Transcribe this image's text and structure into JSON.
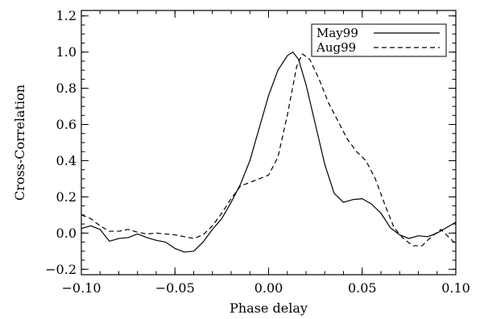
{
  "chart_data": {
    "type": "line",
    "title": "",
    "xlabel": "Phase delay",
    "ylabel": "Cross-Correlation",
    "xlim": [
      -0.1,
      0.1
    ],
    "ylim": [
      -0.23,
      1.23
    ],
    "x_ticks": [
      -0.1,
      -0.05,
      0.0,
      0.05,
      0.1
    ],
    "x_tick_labels": [
      "−0.10",
      "−0.05",
      "0.00",
      "0.05",
      "0.10"
    ],
    "y_ticks": [
      -0.2,
      0.0,
      0.2,
      0.4,
      0.6,
      0.8,
      1.0,
      1.2
    ],
    "y_tick_labels": [
      "−0.2",
      "0.0",
      "0.2",
      "0.4",
      "0.6",
      "0.8",
      "1.0",
      "1.2"
    ],
    "grid": false,
    "legend_position": "top-right",
    "series": [
      {
        "name": "May99",
        "line_style": "solid",
        "color": "#000000",
        "points": [
          [
            -0.1,
            0.025
          ],
          [
            -0.095,
            0.04
          ],
          [
            -0.09,
            0.02
          ],
          [
            -0.085,
            -0.045
          ],
          [
            -0.08,
            -0.03
          ],
          [
            -0.075,
            -0.025
          ],
          [
            -0.07,
            -0.005
          ],
          [
            -0.065,
            -0.025
          ],
          [
            -0.06,
            -0.04
          ],
          [
            -0.055,
            -0.05
          ],
          [
            -0.05,
            -0.085
          ],
          [
            -0.045,
            -0.105
          ],
          [
            -0.04,
            -0.1
          ],
          [
            -0.035,
            -0.05
          ],
          [
            -0.03,
            0.02
          ],
          [
            -0.025,
            0.08
          ],
          [
            -0.02,
            0.17
          ],
          [
            -0.015,
            0.27
          ],
          [
            -0.01,
            0.4
          ],
          [
            -0.005,
            0.58
          ],
          [
            0.0,
            0.76
          ],
          [
            0.005,
            0.9
          ],
          [
            0.01,
            0.98
          ],
          [
            0.013,
            1.0
          ],
          [
            0.016,
            0.96
          ],
          [
            0.02,
            0.82
          ],
          [
            0.025,
            0.6
          ],
          [
            0.03,
            0.38
          ],
          [
            0.035,
            0.22
          ],
          [
            0.04,
            0.17
          ],
          [
            0.045,
            0.185
          ],
          [
            0.05,
            0.19
          ],
          [
            0.055,
            0.16
          ],
          [
            0.06,
            0.11
          ],
          [
            0.065,
            0.03
          ],
          [
            0.07,
            -0.01
          ],
          [
            0.075,
            -0.03
          ],
          [
            0.08,
            -0.015
          ],
          [
            0.085,
            -0.02
          ],
          [
            0.09,
            0.0
          ],
          [
            0.095,
            0.03
          ],
          [
            0.1,
            0.06
          ]
        ]
      },
      {
        "name": "Aug99",
        "line_style": "dashed",
        "color": "#000000",
        "points": [
          [
            -0.1,
            0.1
          ],
          [
            -0.095,
            0.08
          ],
          [
            -0.09,
            0.04
          ],
          [
            -0.085,
            0.01
          ],
          [
            -0.08,
            0.01
          ],
          [
            -0.075,
            0.02
          ],
          [
            -0.07,
            0.005
          ],
          [
            -0.065,
            -0.005
          ],
          [
            -0.06,
            0.0
          ],
          [
            -0.055,
            -0.005
          ],
          [
            -0.05,
            -0.01
          ],
          [
            -0.045,
            -0.02
          ],
          [
            -0.04,
            -0.03
          ],
          [
            -0.035,
            -0.01
          ],
          [
            -0.03,
            0.04
          ],
          [
            -0.025,
            0.11
          ],
          [
            -0.02,
            0.19
          ],
          [
            -0.015,
            0.26
          ],
          [
            -0.01,
            0.28
          ],
          [
            -0.005,
            0.3
          ],
          [
            0.0,
            0.32
          ],
          [
            0.005,
            0.42
          ],
          [
            0.01,
            0.65
          ],
          [
            0.015,
            0.92
          ],
          [
            0.018,
            0.99
          ],
          [
            0.022,
            0.96
          ],
          [
            0.027,
            0.85
          ],
          [
            0.032,
            0.72
          ],
          [
            0.037,
            0.62
          ],
          [
            0.042,
            0.52
          ],
          [
            0.047,
            0.45
          ],
          [
            0.052,
            0.4
          ],
          [
            0.057,
            0.3
          ],
          [
            0.062,
            0.16
          ],
          [
            0.067,
            0.03
          ],
          [
            0.072,
            -0.03
          ],
          [
            0.077,
            -0.07
          ],
          [
            0.082,
            -0.07
          ],
          [
            0.087,
            -0.02
          ],
          [
            0.092,
            0.02
          ],
          [
            0.097,
            -0.03
          ],
          [
            0.1,
            -0.06
          ]
        ]
      }
    ]
  }
}
